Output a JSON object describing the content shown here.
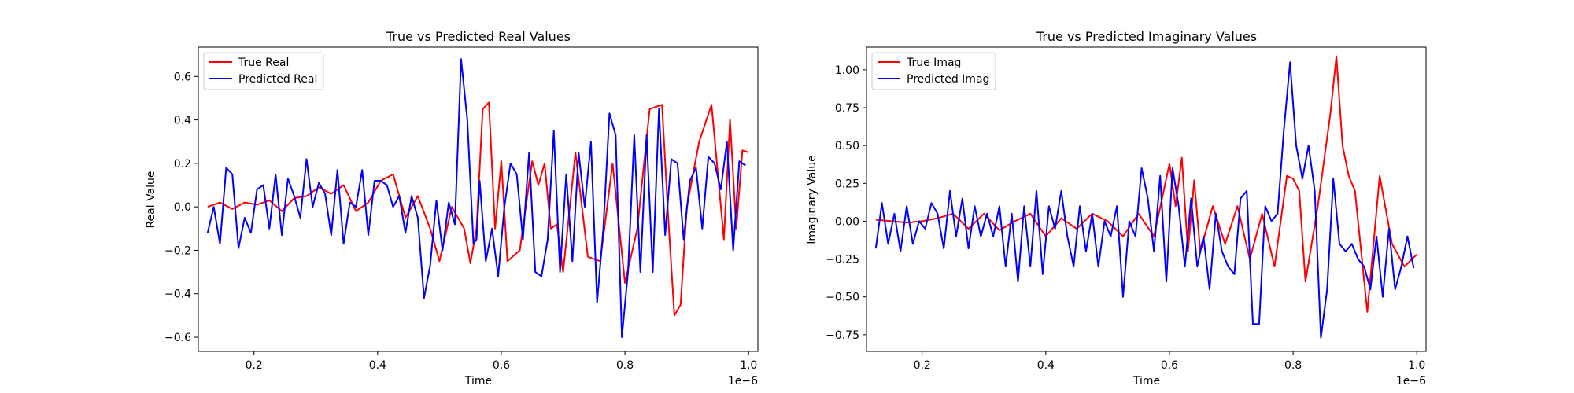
{
  "chart_data": [
    {
      "type": "line",
      "title": "True vs Predicted Real Values",
      "xlabel": "Time",
      "ylabel": "Real Value",
      "x_offset_label": "1e−6",
      "xlim": [
        0.11,
        1.015
      ],
      "ylim": [
        -0.665,
        0.735
      ],
      "xticks": [
        0.2,
        0.4,
        0.6,
        0.8,
        1.0
      ],
      "xtick_labels": [
        "0.2",
        "0.4",
        "0.6",
        "0.8",
        "1.0"
      ],
      "yticks": [
        -0.6,
        -0.4,
        -0.2,
        0.0,
        0.2,
        0.4,
        0.6
      ],
      "ytick_labels": [
        "−0.6",
        "−0.4",
        "−0.2",
        "0.0",
        "0.2",
        "0.4",
        "0.6"
      ],
      "grid": false,
      "legend_position": "upper-left",
      "series": [
        {
          "name": "True Real",
          "color": "#ff0000",
          "x": [
            0.125,
            0.145,
            0.165,
            0.185,
            0.205,
            0.225,
            0.245,
            0.265,
            0.285,
            0.305,
            0.325,
            0.345,
            0.365,
            0.385,
            0.405,
            0.425,
            0.445,
            0.465,
            0.485,
            0.5,
            0.52,
            0.54,
            0.55,
            0.56,
            0.57,
            0.58,
            0.59,
            0.6,
            0.61,
            0.63,
            0.65,
            0.66,
            0.67,
            0.68,
            0.69,
            0.7,
            0.72,
            0.74,
            0.76,
            0.78,
            0.8,
            0.82,
            0.84,
            0.86,
            0.87,
            0.88,
            0.89,
            0.9,
            0.92,
            0.94,
            0.96,
            0.97,
            0.98,
            0.99,
            1.0
          ],
          "values": [
            0.0,
            0.02,
            -0.01,
            0.02,
            0.01,
            0.03,
            -0.02,
            0.04,
            0.05,
            0.09,
            0.06,
            0.1,
            -0.02,
            0.02,
            0.12,
            0.15,
            -0.05,
            0.05,
            -0.1,
            -0.25,
            0.0,
            -0.1,
            -0.26,
            -0.1,
            0.45,
            0.48,
            -0.1,
            0.21,
            -0.25,
            -0.2,
            0.21,
            0.1,
            0.2,
            -0.1,
            -0.08,
            -0.3,
            0.25,
            -0.23,
            -0.25,
            0.2,
            -0.35,
            -0.1,
            0.45,
            0.47,
            -0.05,
            -0.5,
            -0.45,
            0.0,
            0.3,
            0.47,
            -0.15,
            0.4,
            -0.1,
            0.26,
            0.25
          ]
        },
        {
          "name": "Predicted Real",
          "color": "#0000ff",
          "x": [
            0.125,
            0.135,
            0.145,
            0.155,
            0.165,
            0.175,
            0.185,
            0.195,
            0.205,
            0.215,
            0.225,
            0.235,
            0.245,
            0.255,
            0.265,
            0.275,
            0.285,
            0.295,
            0.305,
            0.315,
            0.325,
            0.335,
            0.345,
            0.355,
            0.365,
            0.375,
            0.385,
            0.395,
            0.405,
            0.415,
            0.425,
            0.435,
            0.445,
            0.455,
            0.465,
            0.475,
            0.485,
            0.495,
            0.505,
            0.515,
            0.525,
            0.535,
            0.545,
            0.555,
            0.56,
            0.565,
            0.575,
            0.585,
            0.595,
            0.605,
            0.615,
            0.625,
            0.635,
            0.645,
            0.655,
            0.665,
            0.675,
            0.685,
            0.695,
            0.705,
            0.715,
            0.725,
            0.735,
            0.745,
            0.755,
            0.765,
            0.775,
            0.785,
            0.795,
            0.805,
            0.815,
            0.825,
            0.835,
            0.845,
            0.855,
            0.865,
            0.875,
            0.885,
            0.895,
            0.905,
            0.915,
            0.925,
            0.935,
            0.945,
            0.955,
            0.965,
            0.975,
            0.985,
            0.995
          ],
          "values": [
            -0.12,
            0.0,
            -0.17,
            0.18,
            0.15,
            -0.19,
            -0.05,
            -0.12,
            0.08,
            0.1,
            -0.1,
            0.15,
            -0.13,
            0.13,
            0.05,
            -0.05,
            0.22,
            0.0,
            0.11,
            0.06,
            -0.13,
            0.17,
            -0.17,
            0.02,
            0.0,
            0.17,
            -0.13,
            0.12,
            0.12,
            0.1,
            0.0,
            0.05,
            -0.12,
            0.05,
            -0.05,
            -0.42,
            -0.27,
            0.03,
            -0.2,
            0.02,
            -0.08,
            0.68,
            0.4,
            -0.17,
            -0.15,
            0.12,
            -0.25,
            -0.1,
            -0.32,
            0.0,
            0.2,
            0.15,
            -0.15,
            0.25,
            -0.3,
            -0.32,
            -0.15,
            0.35,
            -0.3,
            0.15,
            -0.25,
            0.25,
            0.0,
            0.3,
            -0.44,
            -0.1,
            0.43,
            0.33,
            -0.6,
            -0.3,
            0.33,
            -0.3,
            0.33,
            -0.3,
            0.45,
            -0.13,
            0.22,
            0.2,
            -0.15,
            0.12,
            0.18,
            -0.1,
            0.23,
            0.2,
            0.08,
            0.3,
            -0.2,
            0.21,
            0.19
          ]
        }
      ]
    },
    {
      "type": "line",
      "title": "True vs Predicted Imaginary Values",
      "xlabel": "Time",
      "ylabel": "Imaginary Value",
      "x_offset_label": "1e−6",
      "xlim": [
        0.11,
        1.015
      ],
      "ylim": [
        -0.86,
        1.15
      ],
      "xticks": [
        0.2,
        0.4,
        0.6,
        0.8,
        1.0
      ],
      "xtick_labels": [
        "0.2",
        "0.4",
        "0.6",
        "0.8",
        "1.0"
      ],
      "yticks": [
        -0.75,
        -0.5,
        -0.25,
        0.0,
        0.25,
        0.5,
        0.75,
        1.0
      ],
      "ytick_labels": [
        "−0.75",
        "−0.50",
        "−0.25",
        "0.00",
        "0.25",
        "0.50",
        "0.75",
        "1.00"
      ],
      "grid": false,
      "legend_position": "upper-left",
      "series": [
        {
          "name": "True Imag",
          "color": "#ff0000",
          "x": [
            0.125,
            0.15,
            0.175,
            0.2,
            0.225,
            0.25,
            0.275,
            0.3,
            0.325,
            0.35,
            0.375,
            0.4,
            0.425,
            0.45,
            0.475,
            0.5,
            0.525,
            0.55,
            0.575,
            0.6,
            0.61,
            0.62,
            0.63,
            0.64,
            0.65,
            0.67,
            0.69,
            0.71,
            0.73,
            0.75,
            0.77,
            0.79,
            0.8,
            0.81,
            0.82,
            0.84,
            0.86,
            0.87,
            0.88,
            0.89,
            0.9,
            0.92,
            0.94,
            0.96,
            0.98,
            1.0
          ],
          "values": [
            0.01,
            0.0,
            -0.01,
            0.0,
            0.02,
            0.05,
            -0.05,
            0.05,
            -0.06,
            0.0,
            0.05,
            -0.1,
            0.02,
            -0.05,
            0.05,
            0.0,
            -0.1,
            0.05,
            -0.1,
            0.38,
            0.1,
            0.42,
            -0.2,
            0.27,
            -0.2,
            0.1,
            -0.15,
            0.1,
            -0.25,
            0.05,
            -0.3,
            0.3,
            0.28,
            0.2,
            -0.4,
            0.1,
            0.7,
            1.09,
            0.5,
            0.3,
            0.2,
            -0.6,
            0.3,
            -0.15,
            -0.3,
            -0.22
          ]
        },
        {
          "name": "Predicted Imag",
          "color": "#0000ff",
          "x": [
            0.125,
            0.135,
            0.145,
            0.155,
            0.165,
            0.175,
            0.185,
            0.195,
            0.205,
            0.215,
            0.225,
            0.235,
            0.245,
            0.255,
            0.265,
            0.275,
            0.285,
            0.295,
            0.305,
            0.315,
            0.325,
            0.335,
            0.345,
            0.355,
            0.365,
            0.375,
            0.385,
            0.395,
            0.405,
            0.415,
            0.425,
            0.435,
            0.445,
            0.455,
            0.465,
            0.475,
            0.485,
            0.495,
            0.505,
            0.515,
            0.525,
            0.535,
            0.545,
            0.555,
            0.565,
            0.575,
            0.585,
            0.595,
            0.605,
            0.615,
            0.625,
            0.635,
            0.645,
            0.655,
            0.665,
            0.675,
            0.685,
            0.695,
            0.705,
            0.715,
            0.725,
            0.735,
            0.745,
            0.755,
            0.765,
            0.775,
            0.785,
            0.795,
            0.805,
            0.815,
            0.825,
            0.835,
            0.845,
            0.855,
            0.865,
            0.875,
            0.885,
            0.895,
            0.905,
            0.915,
            0.925,
            0.935,
            0.945,
            0.955,
            0.965,
            0.975,
            0.985,
            0.995
          ],
          "values": [
            -0.18,
            0.12,
            -0.15,
            0.05,
            -0.2,
            0.1,
            -0.15,
            0.0,
            -0.05,
            0.12,
            0.05,
            -0.18,
            0.2,
            -0.1,
            0.15,
            -0.18,
            0.1,
            -0.1,
            0.05,
            -0.1,
            0.1,
            -0.3,
            0.05,
            -0.4,
            0.1,
            -0.3,
            0.2,
            -0.35,
            0.1,
            -0.05,
            0.2,
            -0.1,
            -0.3,
            0.1,
            -0.2,
            0.05,
            -0.3,
            0.0,
            -0.1,
            0.1,
            -0.5,
            0.0,
            -0.1,
            0.35,
            0.15,
            -0.2,
            0.3,
            -0.4,
            0.35,
            0.1,
            -0.3,
            0.15,
            -0.3,
            -0.1,
            -0.45,
            0.05,
            -0.2,
            -0.3,
            -0.35,
            0.15,
            0.2,
            -0.68,
            -0.68,
            0.1,
            0.0,
            0.05,
            0.6,
            1.05,
            0.5,
            0.28,
            0.5,
            0.2,
            -0.77,
            -0.45,
            0.28,
            -0.15,
            -0.2,
            -0.15,
            -0.25,
            -0.3,
            -0.45,
            -0.1,
            -0.5,
            -0.05,
            -0.45,
            -0.3,
            -0.1,
            -0.31
          ]
        }
      ]
    }
  ]
}
